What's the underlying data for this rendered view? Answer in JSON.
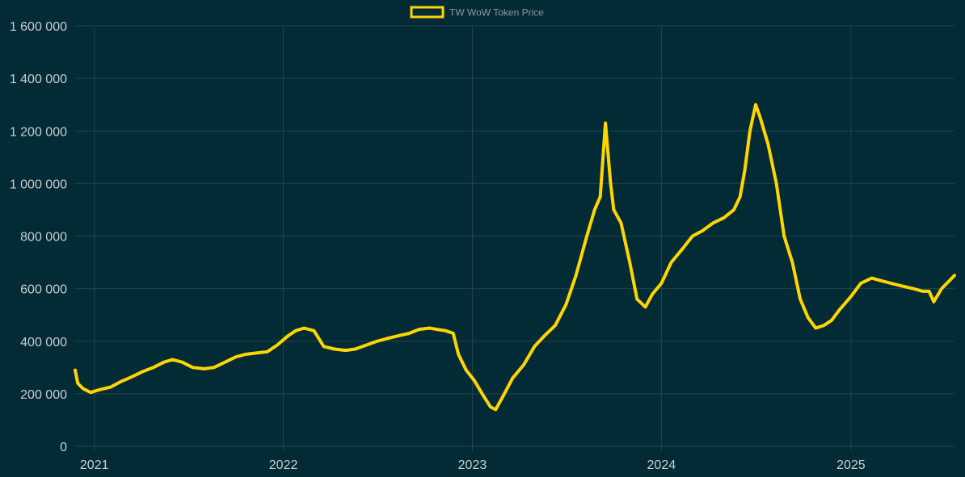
{
  "colors": {
    "background": "#022b36",
    "grid": "#21444d",
    "series": "#ffd500",
    "tick_text": "#c9ced1",
    "legend_text": "#8d989d"
  },
  "chart_data": {
    "type": "line",
    "title": "",
    "xlabel": "",
    "ylabel": "",
    "legend": {
      "position": "top-center"
    },
    "grid": true,
    "xlim": [
      "2020-11-25",
      "2025-07-20"
    ],
    "ylim": [
      0,
      1600000
    ],
    "x_tick_labels": [
      "2021",
      "2022",
      "2023",
      "2024",
      "2025"
    ],
    "x_ticks": [
      "2021-01-01",
      "2022-01-01",
      "2023-01-01",
      "2024-01-01",
      "2025-01-01"
    ],
    "y_tick_labels": [
      "0",
      "200 000",
      "400 000",
      "600 000",
      "800 000",
      "1 000 000",
      "1 200 000",
      "1 400 000",
      "1 600 000"
    ],
    "y_ticks": [
      0,
      200000,
      400000,
      600000,
      800000,
      1000000,
      1200000,
      1400000,
      1600000
    ],
    "series": [
      {
        "name": "TW WoW Token Price",
        "x": [
          "2020-11-25",
          "2020-11-30",
          "2020-12-10",
          "2020-12-25",
          "2021-01-10",
          "2021-02-01",
          "2021-02-20",
          "2021-03-15",
          "2021-04-05",
          "2021-04-25",
          "2021-05-15",
          "2021-06-01",
          "2021-06-20",
          "2021-07-10",
          "2021-08-01",
          "2021-08-20",
          "2021-09-10",
          "2021-10-01",
          "2021-10-20",
          "2021-11-10",
          "2021-12-01",
          "2021-12-20",
          "2022-01-10",
          "2022-01-25",
          "2022-02-10",
          "2022-03-01",
          "2022-03-20",
          "2022-04-10",
          "2022-05-01",
          "2022-05-20",
          "2022-06-10",
          "2022-07-01",
          "2022-07-20",
          "2022-08-10",
          "2022-09-01",
          "2022-09-20",
          "2022-10-10",
          "2022-10-25",
          "2022-11-10",
          "2022-11-25",
          "2022-12-05",
          "2022-12-20",
          "2023-01-05",
          "2023-01-20",
          "2023-02-05",
          "2023-02-15",
          "2023-03-01",
          "2023-03-20",
          "2023-04-10",
          "2023-05-01",
          "2023-05-20",
          "2023-06-10",
          "2023-07-01",
          "2023-07-20",
          "2023-08-10",
          "2023-08-25",
          "2023-09-05",
          "2023-09-15",
          "2023-09-25",
          "2023-10-01",
          "2023-10-15",
          "2023-11-01",
          "2023-11-15",
          "2023-12-01",
          "2023-12-15",
          "2024-01-01",
          "2024-01-20",
          "2024-02-10",
          "2024-03-01",
          "2024-03-20",
          "2024-04-10",
          "2024-05-01",
          "2024-05-20",
          "2024-06-01",
          "2024-06-10",
          "2024-06-20",
          "2024-07-01",
          "2024-07-10",
          "2024-07-25",
          "2024-08-10",
          "2024-08-25",
          "2024-09-10",
          "2024-09-25",
          "2024-10-10",
          "2024-10-25",
          "2024-11-10",
          "2024-11-25",
          "2024-12-10",
          "2025-01-01",
          "2025-01-20",
          "2025-02-10",
          "2025-03-01",
          "2025-03-20",
          "2025-04-10",
          "2025-05-01",
          "2025-05-20",
          "2025-06-01",
          "2025-06-10",
          "2025-06-25",
          "2025-07-10",
          "2025-07-20"
        ],
        "values": [
          290000,
          240000,
          220000,
          205000,
          215000,
          225000,
          245000,
          265000,
          285000,
          300000,
          320000,
          330000,
          320000,
          300000,
          295000,
          300000,
          320000,
          340000,
          350000,
          355000,
          360000,
          385000,
          420000,
          440000,
          450000,
          440000,
          380000,
          370000,
          365000,
          370000,
          385000,
          400000,
          410000,
          420000,
          430000,
          445000,
          450000,
          445000,
          440000,
          430000,
          350000,
          290000,
          250000,
          200000,
          150000,
          140000,
          190000,
          260000,
          310000,
          380000,
          420000,
          460000,
          540000,
          650000,
          800000,
          900000,
          950000,
          1230000,
          1000000,
          900000,
          850000,
          700000,
          560000,
          530000,
          580000,
          620000,
          700000,
          750000,
          800000,
          820000,
          850000,
          870000,
          900000,
          950000,
          1050000,
          1200000,
          1300000,
          1250000,
          1150000,
          1000000,
          800000,
          700000,
          560000,
          490000,
          450000,
          460000,
          480000,
          520000,
          570000,
          620000,
          640000,
          630000,
          620000,
          610000,
          600000,
          590000,
          590000,
          550000,
          600000,
          630000,
          650000
        ]
      }
    ]
  }
}
